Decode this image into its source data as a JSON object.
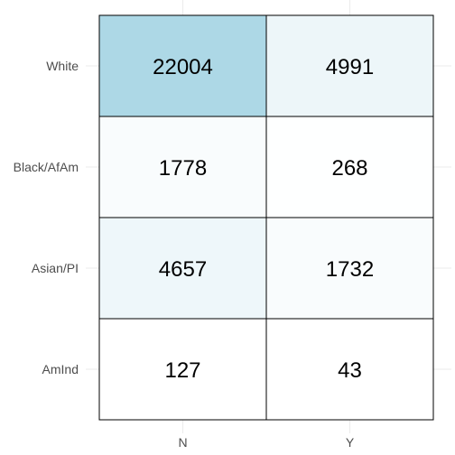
{
  "chart_data": {
    "type": "heatmap",
    "x_categories": [
      "N",
      "Y"
    ],
    "y_categories": [
      "White",
      "Black/AfAm",
      "Asian/PI",
      "AmInd"
    ],
    "values": [
      [
        22004,
        4991
      ],
      [
        1778,
        268
      ],
      [
        4657,
        1732
      ],
      [
        127,
        43
      ]
    ],
    "title": "",
    "xlabel": "",
    "ylabel": "",
    "legend": "none",
    "grid": true,
    "colors": {
      "low": "#ffffff",
      "high": "#add8e6",
      "cell_border": "#000000",
      "gridline": "#ebebeb",
      "tick_text": "#4d4d4d",
      "label_text": "#000000"
    }
  }
}
